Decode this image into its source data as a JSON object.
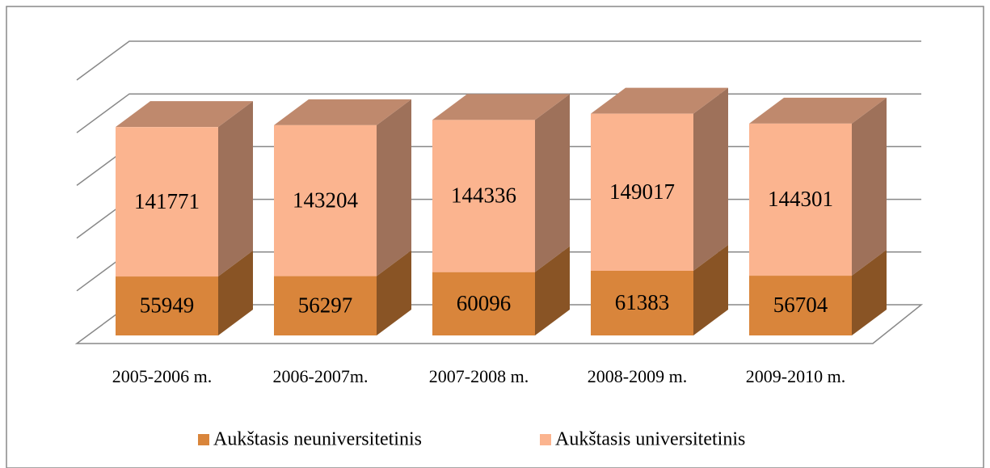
{
  "chart_data": {
    "type": "bar",
    "stacked": true,
    "categories": [
      "2005-2006 m.",
      "2006-2007m.",
      "2007-2008 m.",
      "2008-2009 m.",
      "2009-2010 m."
    ],
    "series": [
      {
        "name": "Aukštasis neuniversitetinis",
        "color": "#d9853b",
        "values": [
          55949,
          56297,
          60096,
          61383,
          56704
        ]
      },
      {
        "name": "Aukštasis universitetinis",
        "color": "#fbb48f",
        "values": [
          141771,
          143204,
          144336,
          149017,
          144301
        ]
      }
    ],
    "ylim": [
      0,
      250000
    ],
    "yticks": [
      0,
      50000,
      100000,
      150000,
      200000,
      250000
    ],
    "grid": true,
    "legend": "bottom"
  }
}
